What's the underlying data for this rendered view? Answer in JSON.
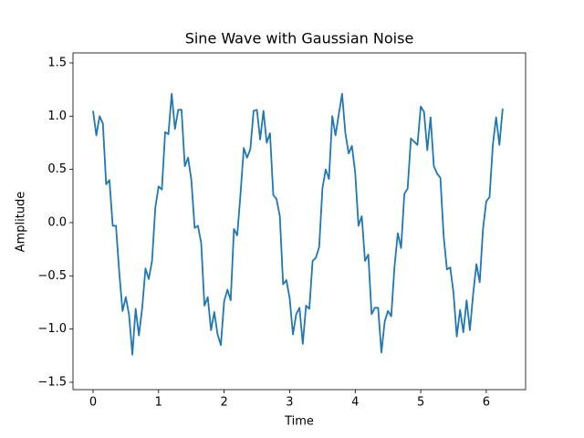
{
  "chart_data": {
    "type": "line",
    "title": "Sine Wave with Gaussian Noise",
    "x_label": "Time",
    "y_label": "Amplitude",
    "xlim": [
      -0.306,
      6.6
    ],
    "ylim": [
      -1.569,
      1.594
    ],
    "xticks": [
      0,
      1,
      2,
      3,
      4,
      5,
      6
    ],
    "yticks": [
      {
        "value": -1.5,
        "label": "−1.5"
      },
      {
        "value": -1.0,
        "label": "−1.0"
      },
      {
        "value": -0.5,
        "label": "−0.5"
      },
      {
        "value": 0,
        "label": "0.0"
      },
      {
        "value": 0.5,
        "label": "0.5"
      },
      {
        "value": 1.0,
        "label": "1.0"
      },
      1.5
    ],
    "x": [
      0,
      0.05,
      0.1,
      0.15,
      0.2,
      0.25,
      0.3,
      0.35,
      0.4,
      0.45,
      0.5,
      0.55,
      0.6,
      0.65,
      0.7,
      0.75,
      0.8,
      0.85,
      0.9,
      0.95,
      1,
      1.05,
      1.1,
      1.15,
      1.2,
      1.25,
      1.3,
      1.35,
      1.4,
      1.45,
      1.5,
      1.55,
      1.6,
      1.65,
      1.7,
      1.75,
      1.8,
      1.85,
      1.9,
      1.95,
      2,
      2.05,
      2.1,
      2.15,
      2.2,
      2.25,
      2.3,
      2.35,
      2.4,
      2.45,
      2.5,
      2.55,
      2.6,
      2.65,
      2.7,
      2.75,
      2.8,
      2.85,
      2.9,
      2.95,
      3,
      3.05,
      3.1,
      3.15,
      3.2,
      3.25,
      3.3,
      3.35,
      3.4,
      3.45,
      3.5,
      3.55,
      3.6,
      3.65,
      3.7,
      3.75,
      3.8,
      3.85,
      3.9,
      3.95,
      4,
      4.05,
      4.1,
      4.15,
      4.2,
      4.25,
      4.3,
      4.35,
      4.4,
      4.45,
      4.5,
      4.55,
      4.6,
      4.65,
      4.7,
      4.75,
      4.8,
      4.85,
      4.9,
      4.95,
      5,
      5.05,
      5.1,
      5.15,
      5.2,
      5.25,
      5.3,
      5.35,
      5.4,
      5.45,
      5.5,
      5.55,
      5.6,
      5.65,
      5.7,
      5.75,
      5.8,
      5.85,
      5.9,
      5.95,
      6,
      6.05,
      6.1,
      6.15,
      6.2,
      6.25
    ],
    "series": [
      {
        "color": "#1f77b4",
        "values": [
          1.05,
          0.82,
          1.0,
          0.93,
          0.36,
          0.4,
          -0.03,
          -0.03,
          -0.47,
          -0.83,
          -0.7,
          -0.87,
          -1.24,
          -0.81,
          -1.06,
          -0.8,
          -0.43,
          -0.53,
          -0.36,
          0.14,
          0.34,
          0.31,
          0.85,
          0.83,
          1.21,
          0.88,
          1.06,
          1.06,
          0.53,
          0.61,
          0.4,
          -0.05,
          -0.03,
          -0.19,
          -0.78,
          -0.7,
          -1.01,
          -0.84,
          -1.05,
          -1.15,
          -0.74,
          -0.63,
          -0.73,
          -0.06,
          -0.12,
          0.27,
          0.7,
          0.61,
          0.69,
          1.05,
          1.06,
          0.78,
          1.05,
          0.75,
          0.84,
          0.26,
          0.22,
          0.06,
          -0.58,
          -0.54,
          -0.71,
          -1.05,
          -0.86,
          -0.8,
          -1.14,
          -0.78,
          -0.81,
          -0.36,
          -0.33,
          -0.23,
          0.32,
          0.5,
          0.41,
          1.0,
          0.82,
          1.02,
          1.21,
          0.84,
          0.65,
          0.72,
          0.47,
          -0.03,
          0.06,
          -0.36,
          -0.3,
          -0.86,
          -0.8,
          -0.8,
          -1.22,
          -0.93,
          -0.83,
          -0.88,
          -0.41,
          -0.1,
          -0.24,
          0.27,
          0.32,
          0.79,
          0.76,
          0.73,
          1.09,
          1.04,
          0.68,
          0.99,
          0.53,
          0.46,
          0.42,
          -0.13,
          -0.44,
          -0.42,
          -0.66,
          -1.07,
          -0.82,
          -1.03,
          -0.73,
          -1.01,
          -0.67,
          -0.39,
          -0.56,
          -0.06,
          0.2,
          0.24,
          0.73,
          0.99,
          0.73,
          1.07
        ]
      }
    ]
  }
}
